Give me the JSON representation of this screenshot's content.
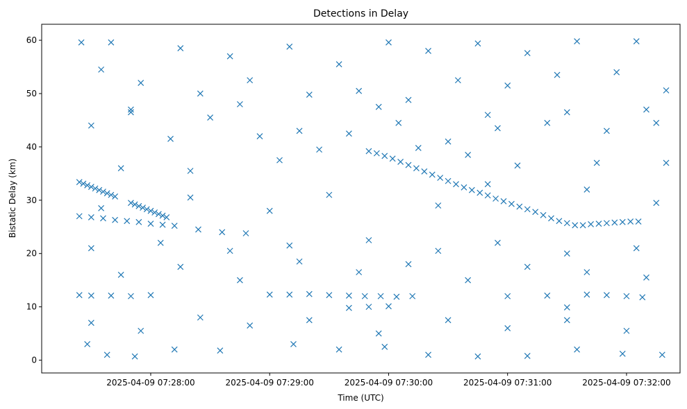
{
  "chart_data": {
    "type": "scatter",
    "title": "Detections in Delay",
    "xlabel": "Time (UTC)",
    "ylabel": "Bistatic Delay (km)",
    "x_ticks": [
      "2025-04-09 07:28:00",
      "2025-04-09 07:29:00",
      "2025-04-09 07:30:00",
      "2025-04-09 07:31:00",
      "2025-04-09 07:32:00"
    ],
    "y_ticks": [
      0,
      10,
      20,
      30,
      40,
      50,
      60
    ],
    "x_range": [
      "2025-04-09 07:27:05",
      "2025-04-09 07:32:27"
    ],
    "ylim": [
      -2.4,
      63.0
    ],
    "grid": false,
    "marker": "x",
    "marker_color": "#1f77b4",
    "series": [
      {
        "points": [
          [
            "2025-04-09 07:27:24",
            33.4
          ],
          [
            "2025-04-09 07:27:26",
            33.1
          ],
          [
            "2025-04-09 07:27:28",
            32.8
          ],
          [
            "2025-04-09 07:27:30",
            32.5
          ],
          [
            "2025-04-09 07:27:32",
            32.2
          ],
          [
            "2025-04-09 07:27:34",
            31.9
          ],
          [
            "2025-04-09 07:27:36",
            31.6
          ],
          [
            "2025-04-09 07:27:38",
            31.3
          ],
          [
            "2025-04-09 07:27:40",
            31.0
          ],
          [
            "2025-04-09 07:27:42",
            30.7
          ],
          [
            "2025-04-09 07:27:50",
            29.5
          ],
          [
            "2025-04-09 07:27:52",
            29.2
          ],
          [
            "2025-04-09 07:27:54",
            28.9
          ],
          [
            "2025-04-09 07:27:56",
            28.6
          ],
          [
            "2025-04-09 07:27:58",
            28.3
          ],
          [
            "2025-04-09 07:28:00",
            28.0
          ],
          [
            "2025-04-09 07:28:02",
            27.7
          ],
          [
            "2025-04-09 07:28:04",
            27.4
          ],
          [
            "2025-04-09 07:28:06",
            27.1
          ],
          [
            "2025-04-09 07:28:08",
            26.8
          ],
          [
            "2025-04-09 07:29:50",
            39.2
          ],
          [
            "2025-04-09 07:29:54",
            38.8
          ],
          [
            "2025-04-09 07:29:58",
            38.3
          ],
          [
            "2025-04-09 07:30:02",
            37.8
          ],
          [
            "2025-04-09 07:30:06",
            37.2
          ],
          [
            "2025-04-09 07:30:10",
            36.6
          ],
          [
            "2025-04-09 07:30:14",
            36.0
          ],
          [
            "2025-04-09 07:30:18",
            35.4
          ],
          [
            "2025-04-09 07:30:22",
            34.8
          ],
          [
            "2025-04-09 07:30:26",
            34.2
          ],
          [
            "2025-04-09 07:30:30",
            33.6
          ],
          [
            "2025-04-09 07:30:34",
            33.0
          ],
          [
            "2025-04-09 07:30:38",
            32.4
          ],
          [
            "2025-04-09 07:30:42",
            31.9
          ],
          [
            "2025-04-09 07:30:46",
            31.4
          ],
          [
            "2025-04-09 07:30:50",
            30.9
          ],
          [
            "2025-04-09 07:30:54",
            30.3
          ],
          [
            "2025-04-09 07:30:58",
            29.8
          ],
          [
            "2025-04-09 07:31:02",
            29.3
          ],
          [
            "2025-04-09 07:31:06",
            28.8
          ],
          [
            "2025-04-09 07:31:10",
            28.3
          ],
          [
            "2025-04-09 07:31:14",
            27.8
          ],
          [
            "2025-04-09 07:31:18",
            27.2
          ],
          [
            "2025-04-09 07:31:22",
            26.6
          ],
          [
            "2025-04-09 07:31:26",
            26.1
          ],
          [
            "2025-04-09 07:31:30",
            25.7
          ],
          [
            "2025-04-09 07:31:34",
            25.3
          ],
          [
            "2025-04-09 07:31:38",
            25.3
          ],
          [
            "2025-04-09 07:31:42",
            25.5
          ],
          [
            "2025-04-09 07:31:46",
            25.6
          ],
          [
            "2025-04-09 07:31:50",
            25.7
          ],
          [
            "2025-04-09 07:31:54",
            25.8
          ],
          [
            "2025-04-09 07:31:58",
            25.9
          ],
          [
            "2025-04-09 07:32:02",
            26.0
          ],
          [
            "2025-04-09 07:32:06",
            26.0
          ],
          [
            "2025-04-09 07:27:24",
            27.0
          ],
          [
            "2025-04-09 07:27:30",
            26.8
          ],
          [
            "2025-04-09 07:27:36",
            26.6
          ],
          [
            "2025-04-09 07:27:42",
            26.3
          ],
          [
            "2025-04-09 07:27:48",
            26.1
          ],
          [
            "2025-04-09 07:27:54",
            25.9
          ],
          [
            "2025-04-09 07:28:00",
            25.6
          ],
          [
            "2025-04-09 07:28:06",
            25.4
          ],
          [
            "2025-04-09 07:28:12",
            25.2
          ],
          [
            "2025-04-09 07:28:24",
            24.5
          ],
          [
            "2025-04-09 07:28:36",
            24.0
          ],
          [
            "2025-04-09 07:28:48",
            23.8
          ],
          [
            "2025-04-09 07:27:24",
            12.2
          ],
          [
            "2025-04-09 07:27:30",
            12.1
          ],
          [
            "2025-04-09 07:27:40",
            12.1
          ],
          [
            "2025-04-09 07:27:50",
            12.0
          ],
          [
            "2025-04-09 07:28:00",
            12.2
          ],
          [
            "2025-04-09 07:29:00",
            12.3
          ],
          [
            "2025-04-09 07:29:10",
            12.3
          ],
          [
            "2025-04-09 07:29:20",
            12.4
          ],
          [
            "2025-04-09 07:29:30",
            12.2
          ],
          [
            "2025-04-09 07:29:40",
            12.1
          ],
          [
            "2025-04-09 07:29:48",
            12.0
          ],
          [
            "2025-04-09 07:29:56",
            12.0
          ],
          [
            "2025-04-09 07:30:04",
            11.9
          ],
          [
            "2025-04-09 07:30:12",
            12.0
          ],
          [
            "2025-04-09 07:31:00",
            12.0
          ],
          [
            "2025-04-09 07:31:20",
            12.1
          ],
          [
            "2025-04-09 07:31:40",
            12.3
          ],
          [
            "2025-04-09 07:31:50",
            12.2
          ],
          [
            "2025-04-09 07:32:00",
            12.0
          ],
          [
            "2025-04-09 07:32:08",
            11.8
          ],
          [
            "2025-04-09 07:29:40",
            9.8
          ],
          [
            "2025-04-09 07:29:50",
            10.0
          ],
          [
            "2025-04-09 07:30:00",
            10.1
          ],
          [
            "2025-04-09 07:31:30",
            9.9
          ],
          [
            "2025-04-09 07:27:25",
            59.6
          ],
          [
            "2025-04-09 07:27:40",
            59.6
          ],
          [
            "2025-04-09 07:28:15",
            58.5
          ],
          [
            "2025-04-09 07:28:40",
            57.0
          ],
          [
            "2025-04-09 07:29:10",
            58.8
          ],
          [
            "2025-04-09 07:29:35",
            55.5
          ],
          [
            "2025-04-09 07:30:00",
            59.6
          ],
          [
            "2025-04-09 07:30:20",
            58.0
          ],
          [
            "2025-04-09 07:30:45",
            59.4
          ],
          [
            "2025-04-09 07:31:10",
            57.6
          ],
          [
            "2025-04-09 07:31:35",
            59.8
          ],
          [
            "2025-04-09 07:32:05",
            59.8
          ],
          [
            "2025-04-09 07:27:35",
            54.5
          ],
          [
            "2025-04-09 07:27:55",
            52.0
          ],
          [
            "2025-04-09 07:28:25",
            50.0
          ],
          [
            "2025-04-09 07:28:50",
            52.5
          ],
          [
            "2025-04-09 07:29:20",
            49.8
          ],
          [
            "2025-04-09 07:29:45",
            50.5
          ],
          [
            "2025-04-09 07:30:10",
            48.8
          ],
          [
            "2025-04-09 07:30:35",
            52.5
          ],
          [
            "2025-04-09 07:31:00",
            51.5
          ],
          [
            "2025-04-09 07:31:25",
            53.5
          ],
          [
            "2025-04-09 07:31:55",
            54.0
          ],
          [
            "2025-04-09 07:32:20",
            50.6
          ],
          [
            "2025-04-09 07:27:30",
            44.0
          ],
          [
            "2025-04-09 07:27:50",
            46.5
          ],
          [
            "2025-04-09 07:28:10",
            41.5
          ],
          [
            "2025-04-09 07:28:30",
            45.5
          ],
          [
            "2025-04-09 07:28:55",
            42.0
          ],
          [
            "2025-04-09 07:29:15",
            43.0
          ],
          [
            "2025-04-09 07:29:40",
            42.5
          ],
          [
            "2025-04-09 07:30:05",
            44.5
          ],
          [
            "2025-04-09 07:30:30",
            41.0
          ],
          [
            "2025-04-09 07:30:55",
            43.5
          ],
          [
            "2025-04-09 07:31:20",
            44.5
          ],
          [
            "2025-04-09 07:31:50",
            43.0
          ],
          [
            "2025-04-09 07:32:15",
            44.5
          ],
          [
            "2025-04-09 07:27:45",
            36.0
          ],
          [
            "2025-04-09 07:28:20",
            35.5
          ],
          [
            "2025-04-09 07:29:05",
            37.5
          ],
          [
            "2025-04-09 07:29:25",
            39.5
          ],
          [
            "2025-04-09 07:30:15",
            39.8
          ],
          [
            "2025-04-09 07:30:40",
            38.5
          ],
          [
            "2025-04-09 07:31:05",
            36.5
          ],
          [
            "2025-04-09 07:31:45",
            37.0
          ],
          [
            "2025-04-09 07:32:20",
            37.0
          ],
          [
            "2025-04-09 07:27:45",
            16.0
          ],
          [
            "2025-04-09 07:28:15",
            17.5
          ],
          [
            "2025-04-09 07:28:45",
            15.0
          ],
          [
            "2025-04-09 07:29:15",
            18.5
          ],
          [
            "2025-04-09 07:29:45",
            16.5
          ],
          [
            "2025-04-09 07:30:10",
            18.0
          ],
          [
            "2025-04-09 07:30:40",
            15.0
          ],
          [
            "2025-04-09 07:31:10",
            17.5
          ],
          [
            "2025-04-09 07:31:40",
            16.5
          ],
          [
            "2025-04-09 07:32:10",
            15.5
          ],
          [
            "2025-04-09 07:27:30",
            21.0
          ],
          [
            "2025-04-09 07:28:05",
            22.0
          ],
          [
            "2025-04-09 07:28:40",
            20.5
          ],
          [
            "2025-04-09 07:29:10",
            21.5
          ],
          [
            "2025-04-09 07:29:50",
            22.5
          ],
          [
            "2025-04-09 07:30:25",
            20.5
          ],
          [
            "2025-04-09 07:30:55",
            22.0
          ],
          [
            "2025-04-09 07:31:30",
            20.0
          ],
          [
            "2025-04-09 07:32:05",
            21.0
          ],
          [
            "2025-04-09 07:27:28",
            3.0
          ],
          [
            "2025-04-09 07:27:38",
            1.0
          ],
          [
            "2025-04-09 07:27:52",
            0.7
          ],
          [
            "2025-04-09 07:28:12",
            2.0
          ],
          [
            "2025-04-09 07:28:35",
            1.8
          ],
          [
            "2025-04-09 07:29:12",
            3.0
          ],
          [
            "2025-04-09 07:29:35",
            2.0
          ],
          [
            "2025-04-09 07:29:58",
            2.5
          ],
          [
            "2025-04-09 07:30:20",
            1.0
          ],
          [
            "2025-04-09 07:30:45",
            0.7
          ],
          [
            "2025-04-09 07:31:10",
            0.8
          ],
          [
            "2025-04-09 07:31:35",
            2.0
          ],
          [
            "2025-04-09 07:31:58",
            1.2
          ],
          [
            "2025-04-09 07:32:18",
            1.0
          ],
          [
            "2025-04-09 07:27:30",
            7.0
          ],
          [
            "2025-04-09 07:27:55",
            5.5
          ],
          [
            "2025-04-09 07:28:25",
            8.0
          ],
          [
            "2025-04-09 07:28:50",
            6.5
          ],
          [
            "2025-04-09 07:29:20",
            7.5
          ],
          [
            "2025-04-09 07:29:55",
            5.0
          ],
          [
            "2025-04-09 07:30:30",
            7.5
          ],
          [
            "2025-04-09 07:31:00",
            6.0
          ],
          [
            "2025-04-09 07:31:30",
            7.5
          ],
          [
            "2025-04-09 07:32:00",
            5.5
          ],
          [
            "2025-04-09 07:27:35",
            28.5
          ],
          [
            "2025-04-09 07:28:20",
            30.5
          ],
          [
            "2025-04-09 07:29:00",
            28.0
          ],
          [
            "2025-04-09 07:29:30",
            31.0
          ],
          [
            "2025-04-09 07:30:25",
            29.0
          ],
          [
            "2025-04-09 07:30:50",
            33.0
          ],
          [
            "2025-04-09 07:31:40",
            32.0
          ],
          [
            "2025-04-09 07:32:15",
            29.5
          ],
          [
            "2025-04-09 07:27:50",
            47.0
          ],
          [
            "2025-04-09 07:28:45",
            48.0
          ],
          [
            "2025-04-09 07:29:55",
            47.5
          ],
          [
            "2025-04-09 07:30:50",
            46.0
          ],
          [
            "2025-04-09 07:31:30",
            46.5
          ],
          [
            "2025-04-09 07:32:10",
            47.0
          ]
        ]
      }
    ]
  }
}
